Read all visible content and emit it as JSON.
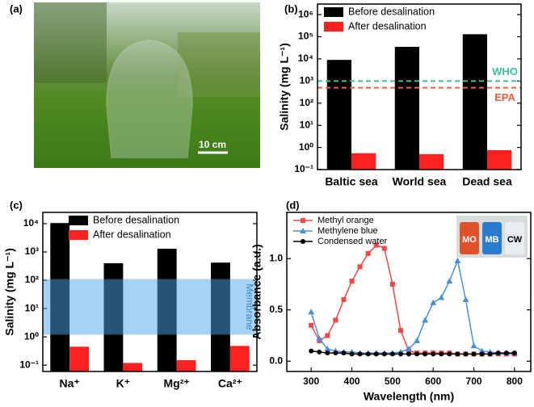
{
  "photo": {
    "panel_label": "(a)",
    "scale_bar": "10 cm"
  },
  "chart_data": [
    {
      "type": "bar",
      "panel_label": "(b)",
      "ylabel": "Salinity (mg L⁻¹)",
      "ylog": true,
      "categories": [
        "Baltic sea",
        "World sea",
        "Dead sea"
      ],
      "series": [
        {
          "name": "Before desalination",
          "color": "#000000",
          "values": [
            9000,
            35000,
            130000
          ]
        },
        {
          "name": "After desalination",
          "color": "#ff2020",
          "values": [
            0.55,
            0.5,
            0.75
          ]
        }
      ],
      "ylim": [
        0.1,
        3000000
      ],
      "yticks": [
        {
          "value": 0.1,
          "label": "10⁻¹"
        },
        {
          "value": 1,
          "label": "10⁰"
        },
        {
          "value": 10,
          "label": "10¹"
        },
        {
          "value": 100,
          "label": "10²"
        },
        {
          "value": 1000,
          "label": "10³"
        },
        {
          "value": 10000,
          "label": "10⁴"
        },
        {
          "value": 100000,
          "label": "10⁵"
        },
        {
          "value": 1000000,
          "label": "10⁶"
        }
      ],
      "reference_lines": [
        {
          "label": "WHO",
          "value": 1000,
          "color": "#3cbf9c"
        },
        {
          "label": "EPA",
          "value": 500,
          "color": "#f0603c"
        }
      ],
      "legend": "upper left"
    },
    {
      "type": "bar",
      "panel_label": "(c)",
      "ylabel": "Salinity (mg L⁻¹)",
      "ylog": true,
      "categories": [
        "Na⁺",
        "K⁺",
        "Mg²⁺",
        "Ca²⁺"
      ],
      "series": [
        {
          "name": "Before desalination",
          "color": "#000000",
          "values": [
            10500,
            400,
            1300,
            420
          ]
        },
        {
          "name": "After desalination",
          "color": "#ff2020",
          "values": [
            0.45,
            0.12,
            0.15,
            0.48
          ]
        }
      ],
      "ylim": [
        0.06,
        25000
      ],
      "yticks": [
        {
          "value": 0.1,
          "label": "10⁻¹"
        },
        {
          "value": 1,
          "label": "10⁰"
        },
        {
          "value": 10,
          "label": "10¹"
        },
        {
          "value": 100,
          "label": "10²"
        },
        {
          "value": 1000,
          "label": "10³"
        },
        {
          "value": 10000,
          "label": "10⁴"
        }
      ],
      "band": {
        "range": [
          1.2,
          110
        ],
        "label": "Membrane",
        "color": "#4aa8e8"
      },
      "legend": "upper right"
    },
    {
      "type": "line",
      "panel_label": "(d)",
      "xlabel": "Wavelength (nm)",
      "ylabel": "Absorbance (a.u.)",
      "x": [
        300,
        320,
        340,
        360,
        380,
        400,
        420,
        440,
        460,
        480,
        500,
        520,
        540,
        560,
        580,
        600,
        620,
        640,
        660,
        680,
        700,
        720,
        740,
        760,
        780,
        800
      ],
      "series": [
        {
          "name": "Methyl orange",
          "color": "#f04848",
          "marker": "square",
          "values": [
            0.35,
            0.2,
            0.25,
            0.4,
            0.6,
            0.78,
            0.92,
            1.05,
            1.13,
            1.1,
            0.75,
            0.3,
            0.1,
            0.08,
            0.08,
            0.08,
            0.08,
            0.08,
            0.07,
            0.07,
            0.07,
            0.07,
            0.07,
            0.07,
            0.07,
            0.07
          ]
        },
        {
          "name": "Methylene blue",
          "color": "#4a90d9",
          "marker": "triangle",
          "values": [
            0.48,
            0.22,
            0.12,
            0.1,
            0.09,
            0.09,
            0.08,
            0.08,
            0.08,
            0.08,
            0.08,
            0.09,
            0.12,
            0.2,
            0.4,
            0.57,
            0.62,
            0.78,
            0.98,
            0.6,
            0.15,
            0.1,
            0.09,
            0.08,
            0.08,
            0.08
          ]
        },
        {
          "name": "Condensed water",
          "color": "#000000",
          "marker": "circle",
          "values": [
            0.1,
            0.09,
            0.08,
            0.08,
            0.08,
            0.07,
            0.07,
            0.07,
            0.07,
            0.07,
            0.07,
            0.07,
            0.07,
            0.07,
            0.07,
            0.07,
            0.07,
            0.07,
            0.07,
            0.07,
            0.07,
            0.07,
            0.07,
            0.08,
            0.08,
            0.08
          ]
        }
      ],
      "xlim": [
        240,
        840
      ],
      "xticks": [
        300,
        400,
        500,
        600,
        700,
        800
      ],
      "ylim": [
        -0.1,
        1.45
      ],
      "yticks": [
        {
          "value": 0,
          "label": "0.0"
        },
        {
          "value": 0.5,
          "label": "0.5"
        },
        {
          "value": 1,
          "label": "1.0"
        }
      ],
      "inset_labels": [
        "MO",
        "MB",
        "CW"
      ],
      "legend": "upper left"
    }
  ]
}
